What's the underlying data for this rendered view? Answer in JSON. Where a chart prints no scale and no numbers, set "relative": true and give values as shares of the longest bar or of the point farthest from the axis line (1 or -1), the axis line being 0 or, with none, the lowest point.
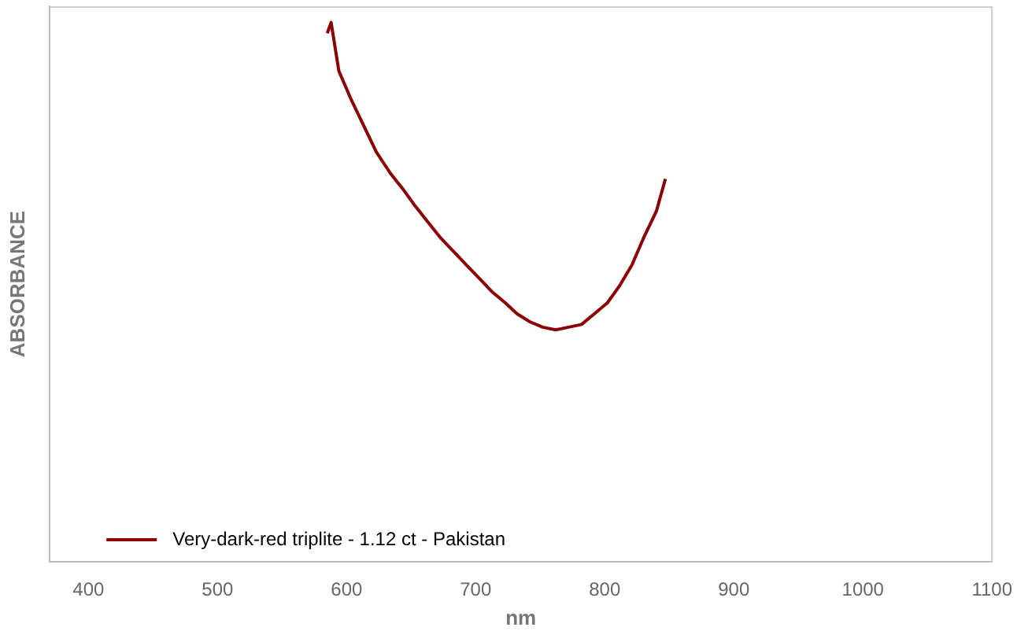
{
  "chart_data": {
    "type": "line",
    "xlabel": "nm",
    "ylabel": "ABSORBANCE",
    "relative": true,
    "xlim": [
      370,
      1100
    ],
    "xticks": [
      400,
      500,
      600,
      700,
      800,
      900,
      1000,
      1100
    ],
    "grid": false,
    "legend": "bottom left",
    "marker": "none",
    "line_style": "solid",
    "series": [
      {
        "name": "Very-dark-red triplite - 1.12 ct - Pakistan",
        "color": "#8b0000",
        "x": [
          585,
          588,
          594,
          603,
          613,
          623,
          634,
          644,
          653,
          663,
          673,
          683,
          693,
          703,
          713,
          723,
          732,
          742,
          752,
          762,
          772,
          782,
          792,
          802,
          811,
          821,
          830,
          840,
          847
        ],
        "values": [
          0.98,
          1,
          0.91,
          0.86,
          0.81,
          0.76,
          0.72,
          0.69,
          0.66,
          0.63,
          0.6,
          0.575,
          0.55,
          0.525,
          0.5,
          0.48,
          0.46,
          0.445,
          0.435,
          0.43,
          0.435,
          0.44,
          0.46,
          0.48,
          0.51,
          0.55,
          0.6,
          0.65,
          0.71
        ]
      }
    ]
  }
}
